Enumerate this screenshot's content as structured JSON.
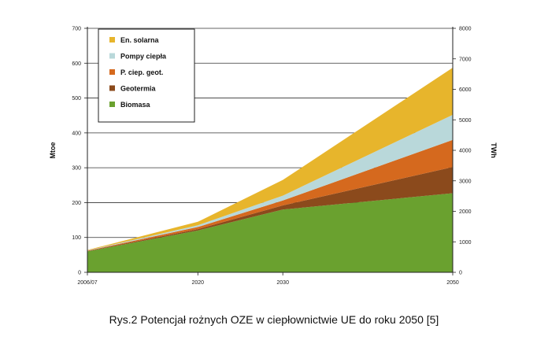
{
  "chart_data": {
    "type": "area",
    "stacked": true,
    "x": [
      "2006/07",
      "2020",
      "2030",
      "2050"
    ],
    "x_numeric": [
      2007,
      2020,
      2030,
      2050
    ],
    "ylabel": "Mtoe",
    "ylabel_right": "TWh",
    "ylim": [
      0,
      700
    ],
    "ylim_right": [
      0,
      8000
    ],
    "yticks": [
      0,
      100,
      200,
      300,
      400,
      500,
      600,
      700
    ],
    "yticks_right": [
      0,
      1000,
      2000,
      3000,
      4000,
      5000,
      6000,
      7000,
      8000
    ],
    "grid": "horizontal",
    "legend_position": "top-left",
    "series": [
      {
        "name": "Biomasa",
        "color": "#6aa12f",
        "values": [
          60,
          120,
          180,
          227
        ]
      },
      {
        "name": "Geotermia",
        "color": "#8b4a1c",
        "values": [
          1,
          4,
          12,
          75
        ]
      },
      {
        "name": "P. ciep. geot.",
        "color": "#d5691e",
        "values": [
          1,
          6,
          14,
          78
        ]
      },
      {
        "name": "Pompy ciepła",
        "color": "#b9d8da",
        "values": [
          1,
          5,
          14,
          72
        ]
      },
      {
        "name": "En. solarna",
        "color": "#e7b52c",
        "values": [
          1,
          10,
          45,
          135
        ]
      }
    ],
    "legend_order": [
      "En. solarna",
      "Pompy ciepła",
      "P. ciep. geot.",
      "Geotermia",
      "Biomasa"
    ]
  },
  "caption": "Rys.2  Potencjał rożnych OZE w ciepłownictwie UE do roku 2050 [5]"
}
